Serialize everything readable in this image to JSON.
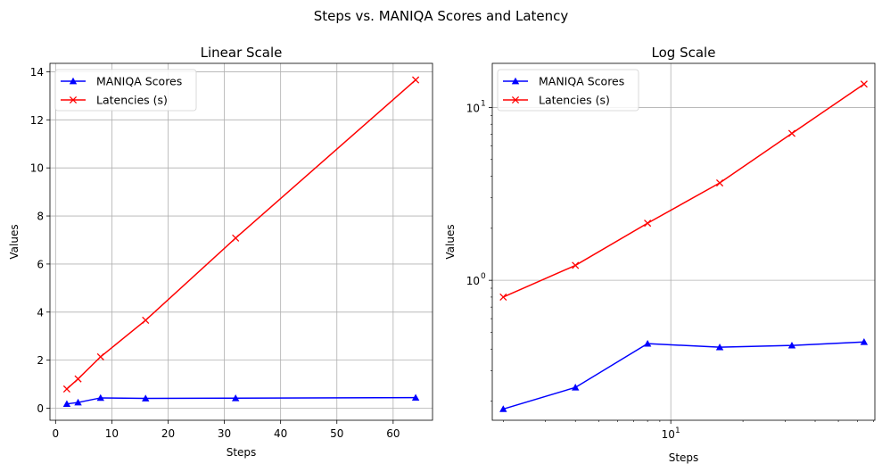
{
  "figure": {
    "suptitle": "Steps vs. MANIQA Scores and Latency"
  },
  "chart_data": [
    {
      "type": "line",
      "title": "Linear Scale",
      "xlabel": "Steps",
      "ylabel": "Values",
      "xscale": "linear",
      "yscale": "linear",
      "xlim": [
        -1,
        67
      ],
      "ylim": [
        -0.5,
        14.35
      ],
      "xticks": [
        0,
        10,
        20,
        30,
        40,
        50,
        60
      ],
      "xtick_labels": [
        "0",
        "10",
        "20",
        "30",
        "40",
        "50",
        "60"
      ],
      "yticks": [
        0,
        2,
        4,
        6,
        8,
        10,
        12,
        14
      ],
      "ytick_labels": [
        "0",
        "2",
        "4",
        "6",
        "8",
        "10",
        "12",
        "14"
      ],
      "grid": true,
      "legend": "upper left",
      "x": [
        2,
        4,
        8,
        16,
        32,
        64
      ],
      "series": [
        {
          "name": "MANIQA Scores",
          "color": "#0000ff",
          "marker": "triangle",
          "values": [
            0.18,
            0.24,
            0.43,
            0.41,
            0.42,
            0.44
          ]
        },
        {
          "name": "Latencies (s)",
          "color": "#ff0000",
          "marker": "x",
          "values": [
            0.8,
            1.22,
            2.14,
            3.66,
            7.08,
            13.66
          ]
        }
      ]
    },
    {
      "type": "line",
      "title": "Log Scale",
      "xlabel": "Steps",
      "ylabel": "Values",
      "xscale": "log",
      "yscale": "log",
      "xlim": [
        1.8,
        71
      ],
      "ylim": [
        0.155,
        18
      ],
      "xticks": [
        10
      ],
      "xtick_labels": [
        "10",
        "1"
      ],
      "yticks": [
        1,
        10
      ],
      "ytick_labels": [
        [
          "10",
          "0"
        ],
        [
          "10",
          "1"
        ]
      ],
      "grid": true,
      "legend": "upper left",
      "x": [
        2,
        4,
        8,
        16,
        32,
        64
      ],
      "series": [
        {
          "name": "MANIQA Scores",
          "color": "#0000ff",
          "marker": "triangle",
          "values": [
            0.18,
            0.24,
            0.43,
            0.41,
            0.42,
            0.44
          ]
        },
        {
          "name": "Latencies (s)",
          "color": "#ff0000",
          "marker": "x",
          "values": [
            0.8,
            1.22,
            2.14,
            3.66,
            7.08,
            13.66
          ]
        }
      ]
    }
  ]
}
